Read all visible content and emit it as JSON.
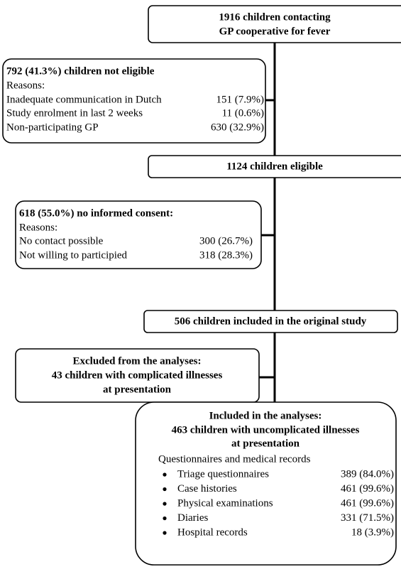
{
  "nodes": [
    {
      "lines": [
        "1916 children contacting",
        "GP cooperative for fever"
      ]
    },
    {
      "title": "792 (41.3%) children not eligible",
      "subtitle": "Reasons:",
      "rows": [
        {
          "label": "Inadequate communication in Dutch",
          "value": "151 (7.9%)"
        },
        {
          "label": "Study enrolment in last 2 weeks",
          "value": "11 (0.6%)"
        },
        {
          "label": "Non-participating GP",
          "value": "630 (32.9%)"
        }
      ]
    },
    {
      "lines": [
        "1124 children eligible"
      ]
    },
    {
      "title": "618 (55.0%) no informed consent:",
      "subtitle": "Reasons:",
      "rows": [
        {
          "label": "No contact possible",
          "value": "300 (26.7%)"
        },
        {
          "label": "Not willing to participied",
          "value": "318 (28.3%)"
        }
      ]
    },
    {
      "lines": [
        "506 children included in the original study"
      ]
    },
    {
      "lines": [
        "Excluded from the analyses:",
        "43 children with complicated illnesses",
        "at presentation"
      ]
    },
    {
      "lines": [
        "Included in the analyses:",
        "463 children with uncomplicated illnesses",
        "at presentation"
      ],
      "subtitle": "Questionnaires and medical records",
      "rows": [
        {
          "label": "Triage questionnaires",
          "value": "389 (84.0%)"
        },
        {
          "label": "Case histories",
          "value": "461 (99.6%)"
        },
        {
          "label": "Physical examinations",
          "value": "461 (99.6%)"
        },
        {
          "label": "Diaries",
          "value": "331 (71.5%)"
        },
        {
          "label": "Hospital records",
          "value": "18 (3.9%)"
        }
      ]
    }
  ]
}
